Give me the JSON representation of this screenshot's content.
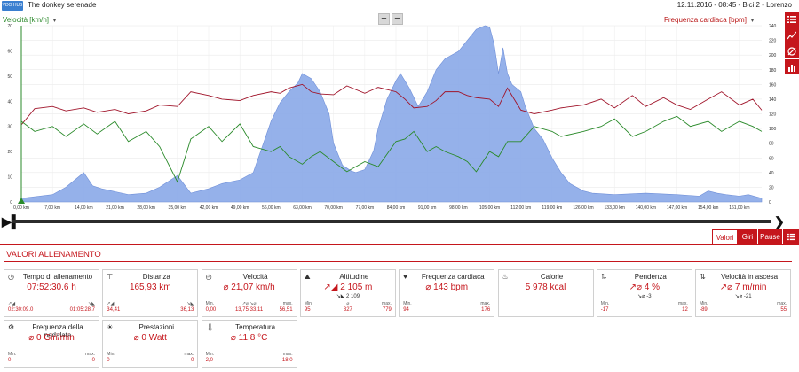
{
  "app": {
    "logo_text": "VDO HUB",
    "title": "The donkey serenade",
    "date": "12.11.2016",
    "time": "08:45",
    "bike": "Bici 2",
    "user": "Lorenzo",
    "sep": " - "
  },
  "chart_controls": {
    "zoom_in": "+",
    "zoom_out": "−",
    "dropdown": "▾",
    "left_icon": "▶▌",
    "right_arrow": "❯",
    "left_arrow": "❮"
  },
  "side_buttons": [
    {
      "icon": "list-icon"
    },
    {
      "icon": "line-chart-icon"
    },
    {
      "icon": "slope-icon"
    },
    {
      "icon": "bar-chart-icon"
    }
  ],
  "chart_data": {
    "type": "line",
    "left_axis_label": "Velocità [km/h]",
    "right_axis_label": "Frequenza cardiaca [bpm]",
    "left_ylim": [
      0,
      70
    ],
    "right_ylim": [
      0,
      240
    ],
    "left_ticks": [
      0,
      10,
      20,
      30,
      40,
      50,
      60,
      70
    ],
    "right_ticks": [
      0,
      20,
      40,
      60,
      80,
      100,
      120,
      140,
      160,
      180,
      200,
      220,
      240
    ],
    "xlim": [
      0,
      166
    ],
    "x_ticks": [
      "0,00 km",
      "7,00 km",
      "14,00 km",
      "21,00 km",
      "28,00 km",
      "35,00 km",
      "42,00 km",
      "49,00 km",
      "56,00 km",
      "63,00 km",
      "70,00 km",
      "77,00 km",
      "84,00 km",
      "91,00 km",
      "98,00 km",
      "105,00 km",
      "112,00 km",
      "119,00 km",
      "126,00 km",
      "133,00 km",
      "140,00 km",
      "147,00 km",
      "154,00 km",
      "161,00 km"
    ],
    "grid": true,
    "colors": {
      "altitude": "#8aa8e8",
      "heart_rate": "#a0142a",
      "speed": "#2a8a2a"
    },
    "series": [
      {
        "series": "altitude",
        "x": [
          0,
          7,
          10,
          14,
          16,
          18,
          21,
          24,
          28,
          31,
          35,
          38,
          42,
          45,
          49,
          52,
          54,
          56,
          58,
          60,
          62,
          63,
          65,
          67,
          69,
          70,
          72,
          74,
          75,
          77,
          79,
          80,
          82,
          84,
          85,
          87,
          89,
          91,
          93,
          95,
          98,
          100,
          102,
          104,
          105,
          106,
          107,
          108,
          109,
          110,
          112,
          113,
          115,
          117,
          119,
          121,
          123,
          126,
          128,
          133,
          140,
          147,
          152,
          154,
          156,
          158,
          161,
          163,
          166
        ],
        "y": [
          5,
          10,
          20,
          40,
          22,
          18,
          14,
          10,
          12,
          20,
          36,
          12,
          18,
          25,
          30,
          40,
          75,
          110,
          135,
          150,
          162,
          175,
          168,
          150,
          120,
          80,
          50,
          42,
          40,
          44,
          70,
          100,
          140,
          165,
          175,
          155,
          130,
          150,
          180,
          195,
          205,
          220,
          235,
          240,
          238,
          215,
          175,
          210,
          175,
          160,
          150,
          130,
          100,
          85,
          60,
          40,
          25,
          15,
          12,
          10,
          12,
          10,
          8,
          15,
          12,
          10,
          8,
          10,
          5
        ]
      },
      {
        "series": "heart_rate",
        "x": [
          0,
          3,
          7,
          10,
          14,
          17,
          21,
          24,
          28,
          31,
          35,
          38,
          42,
          45,
          49,
          52,
          56,
          58,
          60,
          63,
          65,
          67,
          70,
          73,
          77,
          80,
          84,
          86,
          88,
          91,
          93,
          95,
          98,
          100,
          102,
          105,
          107,
          109,
          112,
          115,
          119,
          121,
          126,
          130,
          133,
          137,
          140,
          144,
          147,
          150,
          154,
          157,
          161,
          164,
          166
        ],
        "y": [
          105,
          127,
          130,
          124,
          128,
          122,
          126,
          120,
          124,
          132,
          130,
          150,
          145,
          140,
          138,
          145,
          150,
          148,
          155,
          160,
          150,
          147,
          146,
          158,
          148,
          156,
          150,
          140,
          128,
          130,
          138,
          150,
          150,
          145,
          142,
          140,
          130,
          155,
          125,
          120,
          125,
          128,
          132,
          140,
          128,
          145,
          130,
          142,
          132,
          126,
          140,
          150,
          132,
          140,
          125
        ]
      },
      {
        "series": "speed",
        "x": [
          0,
          3,
          7,
          10,
          14,
          17,
          21,
          24,
          28,
          31,
          35,
          38,
          42,
          45,
          49,
          52,
          56,
          58,
          60,
          63,
          65,
          67,
          70,
          73,
          77,
          80,
          84,
          86,
          88,
          91,
          93,
          95,
          98,
          100,
          102,
          105,
          107,
          109,
          112,
          115,
          119,
          121,
          126,
          130,
          133,
          137,
          140,
          144,
          147,
          150,
          154,
          157,
          161,
          164,
          166
        ],
        "y": [
          32,
          28,
          30,
          26,
          31,
          27,
          32,
          24,
          28,
          22,
          8,
          25,
          30,
          24,
          31,
          22,
          20,
          22,
          18,
          15,
          18,
          20,
          16,
          12,
          16,
          14,
          24,
          25,
          28,
          20,
          22,
          20,
          18,
          16,
          12,
          20,
          18,
          24,
          24,
          30,
          28,
          26,
          28,
          30,
          33,
          26,
          28,
          32,
          34,
          30,
          32,
          28,
          32,
          30,
          28
        ]
      }
    ]
  },
  "tabs": {
    "valori": "Valori",
    "giri": "Giri",
    "pause": "Pause",
    "list_icon": "list-icon"
  },
  "section_title": "VALORI ALLENAMENTO",
  "cards": [
    {
      "icon": "clock-icon",
      "icon_glyph": "◷",
      "title": "Tempo di allenamento",
      "value": "07:52:30.6 h",
      "sub": "",
      "stats": [
        {
          "label": "↗◢",
          "value": "02:30:09.0",
          "align": "left"
        },
        {
          "label": "↘◣",
          "value": "01:05:28.7",
          "align": "right"
        }
      ]
    },
    {
      "icon": "distance-icon",
      "icon_glyph": "⊤",
      "title": "Distanza",
      "value": "165,93 km",
      "sub": "",
      "stats": [
        {
          "label": "↗◢",
          "value": "34,41",
          "align": "left"
        },
        {
          "label": "↘◣",
          "value": "36,13",
          "align": "right"
        }
      ]
    },
    {
      "icon": "speedometer-icon",
      "icon_glyph": "◴",
      "title": "Velocità",
      "value": "⌀ 21,07 km/h",
      "sub": "",
      "stats": [
        {
          "label": "Min.",
          "value": "0,00",
          "align": "left"
        },
        {
          "label": "↗⌀  ↘⌀",
          "value": "13,75  33,11",
          "align": "center"
        },
        {
          "label": "max.",
          "value": "56,51",
          "align": "right"
        }
      ]
    },
    {
      "icon": "mountain-icon",
      "icon_glyph": "⛰",
      "title": "Altitudine",
      "value": "↗◢ 2 105 m",
      "sub": "↘◣ 2 109",
      "stats": [
        {
          "label": "Min.",
          "value": "95",
          "align": "left"
        },
        {
          "label": "⌀",
          "value": "327",
          "align": "center"
        },
        {
          "label": "max.",
          "value": "779",
          "align": "right"
        }
      ]
    },
    {
      "icon": "heart-icon",
      "icon_glyph": "♥",
      "title": "Frequenza cardiaca",
      "value": "⌀ 143 bpm",
      "sub": "",
      "stats": [
        {
          "label": "Min.",
          "value": "94",
          "align": "left"
        },
        {
          "label": "max.",
          "value": "176",
          "align": "right"
        }
      ]
    },
    {
      "icon": "flame-icon",
      "icon_glyph": "♨",
      "title": "Calorie",
      "value": "5 978 kcal",
      "sub": "",
      "stats": []
    },
    {
      "icon": "slope-icon",
      "icon_glyph": "⇅",
      "title": "Pendenza",
      "value": "↗⌀ 4 %",
      "sub": "↘⌀ -3",
      "stats": [
        {
          "label": "Min.",
          "value": "-17",
          "align": "left"
        },
        {
          "label": "max.",
          "value": "12",
          "align": "right"
        }
      ]
    },
    {
      "icon": "climb-speed-icon",
      "icon_glyph": "⇅",
      "title": "Velocità in ascesa",
      "value": "↗⌀ 7 m/min",
      "sub": "↘⌀ -21",
      "stats": [
        {
          "label": "Min.",
          "value": "-89",
          "align": "left"
        },
        {
          "label": "max.",
          "value": "55",
          "align": "right"
        }
      ]
    },
    {
      "icon": "cadence-icon",
      "icon_glyph": "⚙",
      "title": "Frequenza della pedalata",
      "value": "⌀ 0 Giri/min",
      "sub": "",
      "stats": [
        {
          "label": "Min.",
          "value": "0",
          "align": "left"
        },
        {
          "label": "max.",
          "value": "0",
          "align": "right"
        }
      ]
    },
    {
      "icon": "power-icon",
      "icon_glyph": "☀",
      "title": "Prestazioni",
      "value": "⌀ 0 Watt",
      "sub": "",
      "stats": [
        {
          "label": "Min.",
          "value": "0",
          "align": "left"
        },
        {
          "label": "max.",
          "value": "0",
          "align": "right"
        }
      ]
    },
    {
      "icon": "thermometer-icon",
      "icon_glyph": "🌡",
      "title": "Temperatura",
      "value": "⌀ 11,8 °C",
      "sub": "",
      "stats": [
        {
          "label": "Min.",
          "value": "2,0",
          "align": "left"
        },
        {
          "label": "max.",
          "value": "18,0",
          "align": "right"
        }
      ]
    }
  ]
}
